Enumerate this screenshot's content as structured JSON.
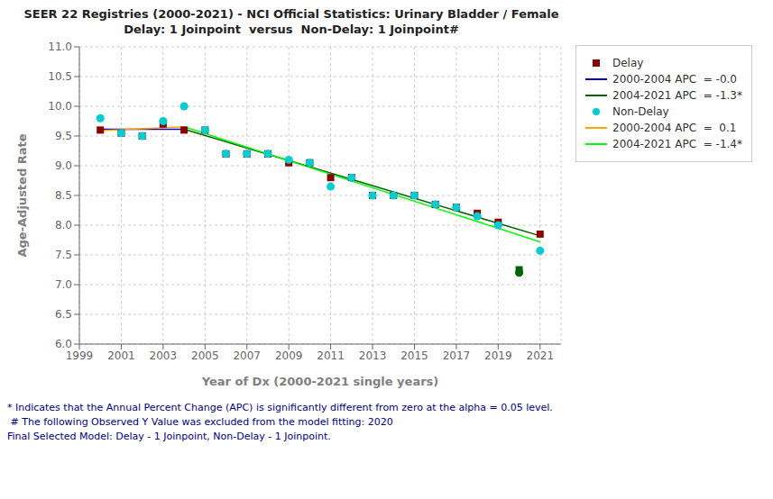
{
  "chart_data": {
    "type": "scatter",
    "title": "SEER 22 Registries (2000-2021) - NCI Official Statistics: Urinary Bladder / Female",
    "subtitle": "Delay: 1 Joinpoint  versus  Non-Delay: 1 Joinpoint#",
    "xlabel": "Year of Dx (2000-2021 single years)",
    "ylabel": "Age-Adjusted Rate",
    "xlim": [
      1999,
      2022
    ],
    "ylim": [
      6,
      11
    ],
    "xticks": [
      1999,
      2001,
      2003,
      2005,
      2007,
      2009,
      2011,
      2013,
      2015,
      2017,
      2019,
      2021
    ],
    "yticks": [
      {
        "value": 6,
        "label": "6.0"
      },
      6.5,
      {
        "value": 7,
        "label": "7.0"
      },
      7.5,
      {
        "value": 8,
        "label": "8.0"
      },
      8.5,
      {
        "value": 9,
        "label": "9.0"
      },
      9.5,
      {
        "value": 10,
        "label": "10.0"
      },
      10.5,
      {
        "value": 11,
        "label": "11.0"
      }
    ],
    "grid": true,
    "legend": "right",
    "series": [
      {
        "name": "Delay",
        "type": "scatter",
        "marker": "square",
        "color": "#8B0000",
        "x": [
          2000,
          2001,
          2002,
          2003,
          2004,
          2005,
          2006,
          2007,
          2008,
          2009,
          2010,
          2011,
          2012,
          2013,
          2014,
          2015,
          2016,
          2017,
          2018,
          2019,
          2021
        ],
        "values": [
          9.6,
          9.55,
          9.5,
          9.7,
          9.6,
          9.6,
          9.2,
          9.2,
          9.2,
          9.05,
          9.05,
          8.8,
          8.8,
          8.5,
          8.5,
          8.5,
          8.35,
          8.3,
          8.2,
          8.05,
          7.85
        ]
      },
      {
        "name": "2000-2004 APC  = -0.0",
        "type": "line",
        "color": "#0000CD",
        "x": [
          2000,
          2004
        ],
        "values": [
          9.615,
          9.615
        ]
      },
      {
        "name": "2004-2021 APC  = -1.3*",
        "type": "line",
        "color": "#006400",
        "x": [
          2004,
          2021
        ],
        "values": [
          9.615,
          7.82
        ]
      },
      {
        "name": "Non-Delay",
        "type": "scatter",
        "marker": "circle",
        "color": "#00CED1",
        "x": [
          2000,
          2001,
          2002,
          2003,
          2004,
          2005,
          2006,
          2007,
          2008,
          2009,
          2010,
          2011,
          2012,
          2013,
          2014,
          2015,
          2016,
          2017,
          2018,
          2019,
          2021
        ],
        "values": [
          9.8,
          9.55,
          9.5,
          9.75,
          10.0,
          9.6,
          9.2,
          9.2,
          9.2,
          9.1,
          9.05,
          8.65,
          8.8,
          8.5,
          8.5,
          8.5,
          8.35,
          8.3,
          8.15,
          8.0,
          7.57
        ]
      },
      {
        "name": "2000-2004 APC  =  0.1",
        "type": "line",
        "color": "#FFA500",
        "x": [
          2000,
          2004
        ],
        "values": [
          9.59,
          9.655
        ]
      },
      {
        "name": "2004-2021 APC  = -1.4*",
        "type": "line",
        "color": "#00FF00",
        "x": [
          2004,
          2021
        ],
        "values": [
          9.655,
          7.72
        ]
      },
      {
        "type": "scatter",
        "marker": "square",
        "color": "#006400",
        "x": [
          2020
        ],
        "values": [
          7.25
        ]
      },
      {
        "type": "scatter",
        "marker": "circle",
        "color": "#006400",
        "x": [
          2020
        ],
        "values": [
          7.2
        ]
      }
    ],
    "annotations": [
      {
        "text": "* Indicates that the Annual Percent Change (APC) is significantly different from zero at the alpha = 0.05 level.",
        "color": "#00008B"
      },
      {
        "text": " # The following Observed Y Value was excluded from the model fitting: 2020",
        "color": "#00008B"
      },
      {
        "text": "Final Selected Model: Delay - 1 Joinpoint, Non-Delay - 1 Joinpoint.",
        "color": "#00008B"
      }
    ]
  }
}
